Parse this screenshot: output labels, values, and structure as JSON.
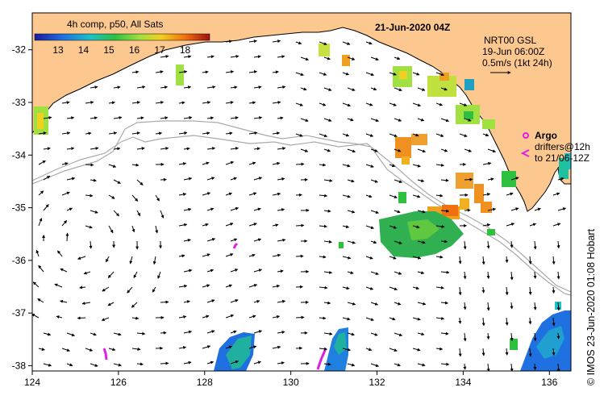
{
  "colorbar": {
    "title": "4h comp, p50, All Sats",
    "ticks": [
      "13",
      "14",
      "15",
      "16",
      "17",
      "18"
    ],
    "stops": [
      "#1a1aa0",
      "#1f6fe0",
      "#1fc0c8",
      "#30c040",
      "#a0e040",
      "#f0d020",
      "#f07010",
      "#a01010"
    ]
  },
  "map": {
    "date_title": "21-Jun-2020 04Z",
    "current_source": "NRT00 GSL",
    "current_date": "19-Jun 06:00Z",
    "scale_text": "0.5m/s (1kt 24h)",
    "legend_argo": "Argo",
    "legend_drifters": "drifters@12h",
    "legend_drifters_to": "to 21/06-12Z",
    "credit": "© IMOS 23-Jun-2020 01:08 Hobart",
    "lon_ticks": [
      "124",
      "126",
      "128",
      "130",
      "132",
      "134",
      "136"
    ],
    "lat_ticks": [
      "-32",
      "-33",
      "-34",
      "-35",
      "-36",
      "-37",
      "-38"
    ],
    "lon_range": [
      124,
      136.5
    ],
    "lat_range": [
      -38.1,
      -31.3
    ],
    "land_color": "#fcc890"
  }
}
